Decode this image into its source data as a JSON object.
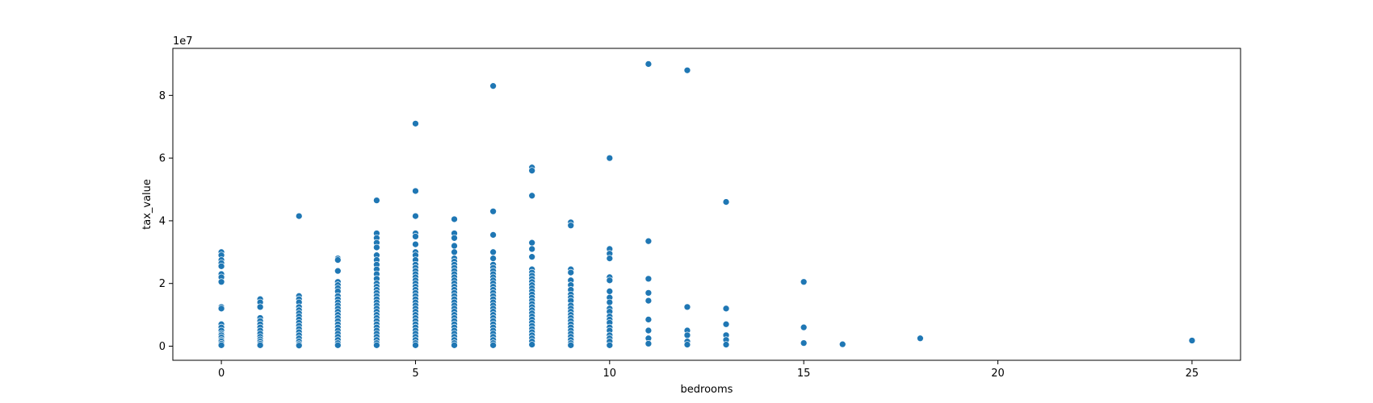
{
  "chart_data": {
    "type": "scatter",
    "title": "",
    "xlabel": "bedrooms",
    "ylabel": "tax_value",
    "y_offset_label": "1e7",
    "xlim": [
      -1.25,
      26.25
    ],
    "ylim": [
      -4500000,
      95000000
    ],
    "x_ticks": [
      0,
      5,
      10,
      15,
      20,
      25
    ],
    "y_ticks": [
      0,
      20000000,
      40000000,
      60000000,
      80000000
    ],
    "x_tick_labels": [
      "0",
      "5",
      "10",
      "15",
      "20",
      "25"
    ],
    "y_tick_labels": [
      "0",
      "2",
      "4",
      "6",
      "8"
    ],
    "grid": false,
    "legend": "none",
    "marker_color": "#1f77b4",
    "marker_edge_color": "#ffffff",
    "series": [
      {
        "points": [
          [
            0,
            30000000
          ],
          [
            0,
            29000000
          ],
          [
            0,
            27500000
          ],
          [
            0,
            26500000
          ],
          [
            0,
            25500000
          ],
          [
            0,
            23000000
          ],
          [
            0,
            22000000
          ],
          [
            0,
            20500000
          ],
          [
            0,
            12500000
          ],
          [
            0,
            12000000
          ],
          [
            0,
            7000000
          ],
          [
            0,
            6000000
          ],
          [
            0,
            5000000
          ],
          [
            0,
            4000000
          ],
          [
            0,
            3500000
          ],
          [
            0,
            2800000
          ],
          [
            0,
            2000000
          ],
          [
            0,
            1500000
          ],
          [
            0,
            800000
          ],
          [
            0,
            300000
          ],
          [
            1,
            15000000
          ],
          [
            1,
            14000000
          ],
          [
            1,
            12500000
          ],
          [
            1,
            9000000
          ],
          [
            1,
            8000000
          ],
          [
            1,
            7000000
          ],
          [
            1,
            6000000
          ],
          [
            1,
            5000000
          ],
          [
            1,
            4000000
          ],
          [
            1,
            3000000
          ],
          [
            1,
            2200000
          ],
          [
            1,
            1500000
          ],
          [
            1,
            800000
          ],
          [
            1,
            300000
          ],
          [
            2,
            41500000
          ],
          [
            2,
            16000000
          ],
          [
            2,
            15000000
          ],
          [
            2,
            14000000
          ],
          [
            2,
            12500000
          ],
          [
            2,
            11500000
          ],
          [
            2,
            10500000
          ],
          [
            2,
            9500000
          ],
          [
            2,
            8500000
          ],
          [
            2,
            7500000
          ],
          [
            2,
            6500000
          ],
          [
            2,
            5500000
          ],
          [
            2,
            4500000
          ],
          [
            2,
            3500000
          ],
          [
            2,
            2500000
          ],
          [
            2,
            1500000
          ],
          [
            2,
            700000
          ],
          [
            2,
            200000
          ],
          [
            3,
            28000000
          ],
          [
            3,
            27500000
          ],
          [
            3,
            24000000
          ],
          [
            3,
            20500000
          ],
          [
            3,
            19500000
          ],
          [
            3,
            18500000
          ],
          [
            3,
            17500000
          ],
          [
            3,
            16000000
          ],
          [
            3,
            15000000
          ],
          [
            3,
            14000000
          ],
          [
            3,
            13000000
          ],
          [
            3,
            12000000
          ],
          [
            3,
            11000000
          ],
          [
            3,
            10000000
          ],
          [
            3,
            9000000
          ],
          [
            3,
            8000000
          ],
          [
            3,
            7000000
          ],
          [
            3,
            6000000
          ],
          [
            3,
            5000000
          ],
          [
            3,
            4000000
          ],
          [
            3,
            3000000
          ],
          [
            3,
            2000000
          ],
          [
            3,
            1000000
          ],
          [
            3,
            300000
          ],
          [
            4,
            46500000
          ],
          [
            4,
            36000000
          ],
          [
            4,
            34500000
          ],
          [
            4,
            33000000
          ],
          [
            4,
            31500000
          ],
          [
            4,
            29000000
          ],
          [
            4,
            27500000
          ],
          [
            4,
            26000000
          ],
          [
            4,
            24500000
          ],
          [
            4,
            23000000
          ],
          [
            4,
            21500000
          ],
          [
            4,
            20000000
          ],
          [
            4,
            19000000
          ],
          [
            4,
            18000000
          ],
          [
            4,
            17000000
          ],
          [
            4,
            16000000
          ],
          [
            4,
            15000000
          ],
          [
            4,
            14000000
          ],
          [
            4,
            13000000
          ],
          [
            4,
            12000000
          ],
          [
            4,
            11000000
          ],
          [
            4,
            10000000
          ],
          [
            4,
            9000000
          ],
          [
            4,
            8000000
          ],
          [
            4,
            7000000
          ],
          [
            4,
            6000000
          ],
          [
            4,
            5000000
          ],
          [
            4,
            4000000
          ],
          [
            4,
            3000000
          ],
          [
            4,
            2000000
          ],
          [
            4,
            1000000
          ],
          [
            4,
            300000
          ],
          [
            5,
            71000000
          ],
          [
            5,
            49500000
          ],
          [
            5,
            41500000
          ],
          [
            5,
            36000000
          ],
          [
            5,
            35000000
          ],
          [
            5,
            32500000
          ],
          [
            5,
            30000000
          ],
          [
            5,
            29000000
          ],
          [
            5,
            27500000
          ],
          [
            5,
            26000000
          ],
          [
            5,
            25000000
          ],
          [
            5,
            24000000
          ],
          [
            5,
            23000000
          ],
          [
            5,
            22000000
          ],
          [
            5,
            21000000
          ],
          [
            5,
            20000000
          ],
          [
            5,
            19000000
          ],
          [
            5,
            18000000
          ],
          [
            5,
            17000000
          ],
          [
            5,
            16000000
          ],
          [
            5,
            15000000
          ],
          [
            5,
            14000000
          ],
          [
            5,
            13000000
          ],
          [
            5,
            12000000
          ],
          [
            5,
            11000000
          ],
          [
            5,
            10000000
          ],
          [
            5,
            9000000
          ],
          [
            5,
            8000000
          ],
          [
            5,
            7000000
          ],
          [
            5,
            6000000
          ],
          [
            5,
            5000000
          ],
          [
            5,
            4000000
          ],
          [
            5,
            3000000
          ],
          [
            5,
            2000000
          ],
          [
            5,
            1000000
          ],
          [
            5,
            300000
          ],
          [
            6,
            40500000
          ],
          [
            6,
            36000000
          ],
          [
            6,
            34500000
          ],
          [
            6,
            32000000
          ],
          [
            6,
            30000000
          ],
          [
            6,
            28000000
          ],
          [
            6,
            27000000
          ],
          [
            6,
            26000000
          ],
          [
            6,
            25000000
          ],
          [
            6,
            24000000
          ],
          [
            6,
            23000000
          ],
          [
            6,
            22000000
          ],
          [
            6,
            21000000
          ],
          [
            6,
            20000000
          ],
          [
            6,
            19000000
          ],
          [
            6,
            18000000
          ],
          [
            6,
            17000000
          ],
          [
            6,
            16000000
          ],
          [
            6,
            15000000
          ],
          [
            6,
            14000000
          ],
          [
            6,
            13000000
          ],
          [
            6,
            12000000
          ],
          [
            6,
            11000000
          ],
          [
            6,
            10000000
          ],
          [
            6,
            9000000
          ],
          [
            6,
            8000000
          ],
          [
            6,
            7000000
          ],
          [
            6,
            6000000
          ],
          [
            6,
            5000000
          ],
          [
            6,
            4000000
          ],
          [
            6,
            3000000
          ],
          [
            6,
            2000000
          ],
          [
            6,
            1000000
          ],
          [
            6,
            300000
          ],
          [
            7,
            83000000
          ],
          [
            7,
            43000000
          ],
          [
            7,
            35500000
          ],
          [
            7,
            30000000
          ],
          [
            7,
            28000000
          ],
          [
            7,
            26000000
          ],
          [
            7,
            25000000
          ],
          [
            7,
            24000000
          ],
          [
            7,
            23000000
          ],
          [
            7,
            22000000
          ],
          [
            7,
            21000000
          ],
          [
            7,
            20000000
          ],
          [
            7,
            19000000
          ],
          [
            7,
            18000000
          ],
          [
            7,
            17000000
          ],
          [
            7,
            16000000
          ],
          [
            7,
            15000000
          ],
          [
            7,
            14000000
          ],
          [
            7,
            13000000
          ],
          [
            7,
            12000000
          ],
          [
            7,
            11000000
          ],
          [
            7,
            10000000
          ],
          [
            7,
            9000000
          ],
          [
            7,
            8000000
          ],
          [
            7,
            7000000
          ],
          [
            7,
            6000000
          ],
          [
            7,
            5000000
          ],
          [
            7,
            4000000
          ],
          [
            7,
            3000000
          ],
          [
            7,
            2000000
          ],
          [
            7,
            1000000
          ],
          [
            7,
            300000
          ],
          [
            8,
            57000000
          ],
          [
            8,
            56000000
          ],
          [
            8,
            48000000
          ],
          [
            8,
            33000000
          ],
          [
            8,
            31000000
          ],
          [
            8,
            28500000
          ],
          [
            8,
            24500000
          ],
          [
            8,
            23500000
          ],
          [
            8,
            22500000
          ],
          [
            8,
            21500000
          ],
          [
            8,
            20500000
          ],
          [
            8,
            19500000
          ],
          [
            8,
            18500000
          ],
          [
            8,
            17500000
          ],
          [
            8,
            16500000
          ],
          [
            8,
            15500000
          ],
          [
            8,
            14500000
          ],
          [
            8,
            13500000
          ],
          [
            8,
            12500000
          ],
          [
            8,
            11500000
          ],
          [
            8,
            10500000
          ],
          [
            8,
            9500000
          ],
          [
            8,
            8500000
          ],
          [
            8,
            7500000
          ],
          [
            8,
            6500000
          ],
          [
            8,
            5500000
          ],
          [
            8,
            4500000
          ],
          [
            8,
            3500000
          ],
          [
            8,
            2500000
          ],
          [
            8,
            1500000
          ],
          [
            8,
            500000
          ],
          [
            9,
            39500000
          ],
          [
            9,
            38500000
          ],
          [
            9,
            24500000
          ],
          [
            9,
            23500000
          ],
          [
            9,
            21000000
          ],
          [
            9,
            19500000
          ],
          [
            9,
            18000000
          ],
          [
            9,
            16500000
          ],
          [
            9,
            15500000
          ],
          [
            9,
            14500000
          ],
          [
            9,
            13000000
          ],
          [
            9,
            12000000
          ],
          [
            9,
            11000000
          ],
          [
            9,
            10000000
          ],
          [
            9,
            9000000
          ],
          [
            9,
            8000000
          ],
          [
            9,
            7000000
          ],
          [
            9,
            6000000
          ],
          [
            9,
            5000000
          ],
          [
            9,
            4000000
          ],
          [
            9,
            3000000
          ],
          [
            9,
            2000000
          ],
          [
            9,
            1000000
          ],
          [
            9,
            300000
          ],
          [
            10,
            60000000
          ],
          [
            10,
            31000000
          ],
          [
            10,
            29500000
          ],
          [
            10,
            28000000
          ],
          [
            10,
            22000000
          ],
          [
            10,
            21000000
          ],
          [
            10,
            17500000
          ],
          [
            10,
            15500000
          ],
          [
            10,
            14000000
          ],
          [
            10,
            12000000
          ],
          [
            10,
            11000000
          ],
          [
            10,
            9500000
          ],
          [
            10,
            8500000
          ],
          [
            10,
            7500000
          ],
          [
            10,
            6000000
          ],
          [
            10,
            5000000
          ],
          [
            10,
            3500000
          ],
          [
            10,
            2500000
          ],
          [
            10,
            1500000
          ],
          [
            10,
            300000
          ],
          [
            11,
            90000000
          ],
          [
            11,
            33500000
          ],
          [
            11,
            21500000
          ],
          [
            11,
            17000000
          ],
          [
            11,
            14500000
          ],
          [
            11,
            8500000
          ],
          [
            11,
            5000000
          ],
          [
            11,
            2500000
          ],
          [
            11,
            800000
          ],
          [
            12,
            88000000
          ],
          [
            12,
            12500000
          ],
          [
            12,
            5000000
          ],
          [
            12,
            3500000
          ],
          [
            12,
            1500000
          ],
          [
            12,
            500000
          ],
          [
            13,
            46000000
          ],
          [
            13,
            12000000
          ],
          [
            13,
            7000000
          ],
          [
            13,
            3500000
          ],
          [
            13,
            2000000
          ],
          [
            13,
            500000
          ],
          [
            15,
            20500000
          ],
          [
            15,
            6000000
          ],
          [
            15,
            1000000
          ],
          [
            16,
            600000
          ],
          [
            18,
            2500000
          ],
          [
            25,
            1800000
          ]
        ]
      }
    ]
  }
}
